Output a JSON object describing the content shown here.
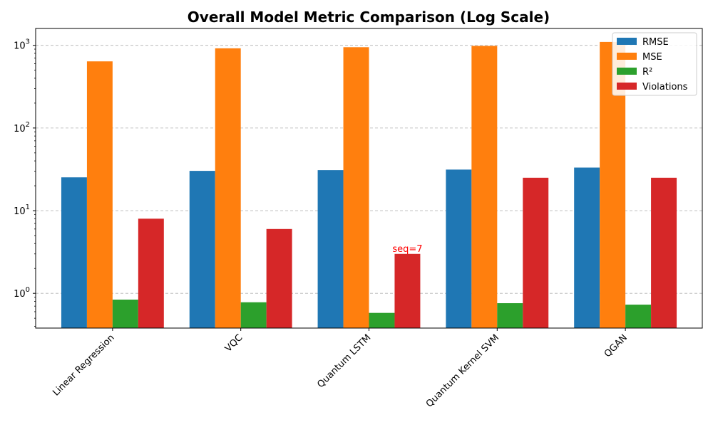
{
  "chart_data": {
    "type": "bar",
    "title": "Overall Model Metric Comparison (Log Scale)",
    "xlabel": "",
    "ylabel": "",
    "yscale": "log",
    "ylim": [
      0.38,
      1600
    ],
    "y_ticks": [
      1,
      10,
      100,
      1000
    ],
    "y_tick_labels": [
      {
        "base": "10",
        "exp": "0"
      },
      {
        "base": "10",
        "exp": "1"
      },
      {
        "base": "10",
        "exp": "2"
      },
      {
        "base": "10",
        "exp": "3"
      }
    ],
    "grid": "y-dashed",
    "legend_position": "top-right",
    "categories": [
      "Linear Regression",
      "VQC",
      "Quantum LSTM",
      "Quantum Kernel SVM",
      "QGAN"
    ],
    "series": [
      {
        "name": "RMSE",
        "color": "#1f77b4",
        "values": [
          25.3,
          30.3,
          30.9,
          31.4,
          33.2
        ]
      },
      {
        "name": "MSE",
        "color": "#ff7f0e",
        "values": [
          640,
          920,
          950,
          985,
          1100
        ]
      },
      {
        "name": "R²",
        "color": "#2ca02c",
        "values": [
          0.84,
          0.78,
          0.58,
          0.76,
          0.73
        ]
      },
      {
        "name": "Violations",
        "color": "#d62728",
        "values": [
          8,
          6,
          3,
          25,
          25
        ]
      }
    ],
    "annotations": [
      {
        "text": "seq=7",
        "category": "Quantum LSTM",
        "series": "Violations",
        "color": "#ff0000"
      }
    ]
  }
}
